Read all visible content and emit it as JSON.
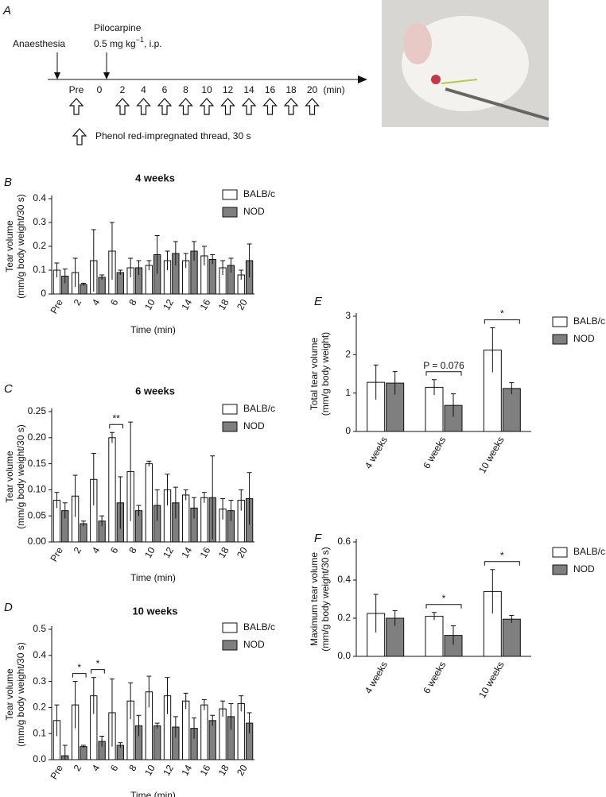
{
  "panel_a": {
    "letter": "A",
    "anaesthesia": "Anaesthesia",
    "pilocarpine": "Pilocarpine",
    "dose": "0.5 mg kg",
    "dose_exp": "−1",
    "dose_route": ", i.p.",
    "timeline": [
      "Pre",
      "0",
      "2",
      "4",
      "6",
      "8",
      "10",
      "12",
      "14",
      "16",
      "18",
      "20"
    ],
    "unit": "(min)",
    "legend": "Phenol red-impregnated thread, 30 s"
  },
  "chart_data": [
    {
      "type": "bar",
      "letter": "B",
      "title": "4 weeks",
      "ylabel": [
        "Tear volume",
        "(mm/g body weight/30 s)"
      ],
      "xlabel": "Time (min)",
      "categories": [
        "Pre",
        "2",
        "4",
        "6",
        "8",
        "10",
        "12",
        "14",
        "16",
        "18",
        "20"
      ],
      "ylim": [
        0,
        0.4
      ],
      "yticks": [
        0,
        0.1,
        0.2,
        0.3,
        0.4
      ],
      "series": [
        {
          "name": "BALB/c",
          "color": "#ffffff",
          "values": [
            0.1,
            0.09,
            0.14,
            0.18,
            0.11,
            0.12,
            0.14,
            0.14,
            0.16,
            0.11,
            0.08
          ],
          "errors": [
            0.03,
            0.06,
            0.13,
            0.12,
            0.04,
            0.02,
            0.04,
            0.03,
            0.04,
            0.03,
            0.02
          ]
        },
        {
          "name": "NOD",
          "color": "#7f7f7f",
          "values": [
            0.075,
            0.04,
            0.07,
            0.09,
            0.11,
            0.165,
            0.17,
            0.18,
            0.145,
            0.12,
            0.14
          ],
          "errors": [
            0.03,
            0.005,
            0.01,
            0.01,
            0.03,
            0.08,
            0.05,
            0.04,
            0.02,
            0.03,
            0.07
          ]
        }
      ],
      "annotations": []
    },
    {
      "type": "bar",
      "letter": "C",
      "title": "6 weeks",
      "ylabel": [
        "Tear volume",
        "(mm/g body weight/30 s)"
      ],
      "xlabel": "Time (min)",
      "categories": [
        "Pre",
        "2",
        "4",
        "6",
        "8",
        "10",
        "12",
        "14",
        "16",
        "18",
        "20"
      ],
      "ylim": [
        0,
        0.25
      ],
      "yticks": [
        {
          "value": 0,
          "label": "0.00"
        },
        {
          "value": 0.05,
          "label": "0.05"
        },
        {
          "value": 0.1,
          "label": "0.10"
        },
        {
          "value": 0.15,
          "label": "0.15"
        },
        {
          "value": 0.2,
          "label": "0.20"
        },
        {
          "value": 0.25,
          "label": "0.25"
        }
      ],
      "series": [
        {
          "name": "BALB/c",
          "color": "#ffffff",
          "values": [
            0.08,
            0.088,
            0.12,
            0.2,
            0.135,
            0.15,
            0.1,
            0.09,
            0.085,
            0.063,
            0.08
          ],
          "errors": [
            0.015,
            0.04,
            0.05,
            0.01,
            0.095,
            0.005,
            0.03,
            0.01,
            0.01,
            0.02,
            0.02
          ]
        },
        {
          "name": "NOD",
          "color": "#7f7f7f",
          "values": [
            0.06,
            0.035,
            0.04,
            0.075,
            0.06,
            0.07,
            0.075,
            0.065,
            0.085,
            0.06,
            0.083
          ],
          "errors": [
            0.015,
            0.005,
            0.01,
            0.05,
            0.01,
            0.03,
            0.03,
            0.02,
            0.08,
            0.02,
            0.05
          ]
        }
      ],
      "annotations": [
        {
          "text": "**",
          "category": "6"
        }
      ]
    },
    {
      "type": "bar",
      "letter": "D",
      "title": "10 weeks",
      "ylabel": [
        "Tear volume",
        "(mm/g body weight/30 s)"
      ],
      "xlabel": "Time (min)",
      "categories": [
        "Pre",
        "2",
        "4",
        "6",
        "8",
        "10",
        "12",
        "14",
        "16",
        "18",
        "20"
      ],
      "ylim": [
        0,
        0.5
      ],
      "yticks": [
        {
          "value": 0,
          "label": "0.0"
        },
        0.1,
        0.2,
        0.3,
        0.4,
        0.5
      ],
      "series": [
        {
          "name": "BALB/c",
          "color": "#ffffff",
          "values": [
            0.15,
            0.21,
            0.245,
            0.18,
            0.225,
            0.26,
            0.245,
            0.225,
            0.21,
            0.195,
            0.215
          ],
          "errors": [
            0.06,
            0.09,
            0.07,
            0.13,
            0.07,
            0.06,
            0.07,
            0.03,
            0.02,
            0.03,
            0.03
          ]
        },
        {
          "name": "NOD",
          "color": "#7f7f7f",
          "values": [
            0.015,
            0.05,
            0.07,
            0.055,
            0.13,
            0.13,
            0.125,
            0.12,
            0.15,
            0.165,
            0.14
          ],
          "errors": [
            0.04,
            0.005,
            0.02,
            0.01,
            0.04,
            0.01,
            0.04,
            0.04,
            0.02,
            0.05,
            0.04
          ]
        }
      ],
      "annotations": [
        {
          "text": "*",
          "category": "2"
        },
        {
          "text": "*",
          "category": "4"
        }
      ]
    },
    {
      "type": "bar",
      "letter": "E",
      "ylabel": [
        "Total tear volume",
        "(mm/g body weight)"
      ],
      "categories": [
        "4 weeks",
        "6 weeks",
        "10 weeks"
      ],
      "ylim": [
        0,
        3
      ],
      "yticks": [
        0,
        1,
        2,
        3
      ],
      "series": [
        {
          "name": "BALB/c",
          "color": "#ffffff",
          "values": [
            1.28,
            1.15,
            2.12
          ],
          "errors": [
            0.45,
            0.2,
            0.58
          ]
        },
        {
          "name": "NOD",
          "color": "#7f7f7f",
          "values": [
            1.26,
            0.68,
            1.12
          ],
          "errors": [
            0.3,
            0.3,
            0.15
          ]
        }
      ],
      "annotations": [
        {
          "text": "P = 0.076",
          "category": "6 weeks"
        },
        {
          "text": "*",
          "category": "10 weeks"
        }
      ]
    },
    {
      "type": "bar",
      "letter": "F",
      "ylabel": [
        "Maximum tear volume",
        "(mm/g body weight/30 s)"
      ],
      "categories": [
        "4 weeks",
        "6 weeks",
        "10 weeks"
      ],
      "ylim": [
        0,
        0.6
      ],
      "yticks": [
        {
          "value": 0,
          "label": "0.0"
        },
        0.2,
        0.4,
        0.6
      ],
      "series": [
        {
          "name": "BALB/c",
          "color": "#ffffff",
          "values": [
            0.225,
            0.21,
            0.34
          ],
          "errors": [
            0.1,
            0.02,
            0.115
          ]
        },
        {
          "name": "NOD",
          "color": "#7f7f7f",
          "values": [
            0.2,
            0.11,
            0.195
          ],
          "errors": [
            0.04,
            0.05,
            0.02
          ]
        }
      ],
      "annotations": [
        {
          "text": "*",
          "category": "6 weeks"
        },
        {
          "text": "*",
          "category": "10 weeks"
        }
      ]
    }
  ]
}
